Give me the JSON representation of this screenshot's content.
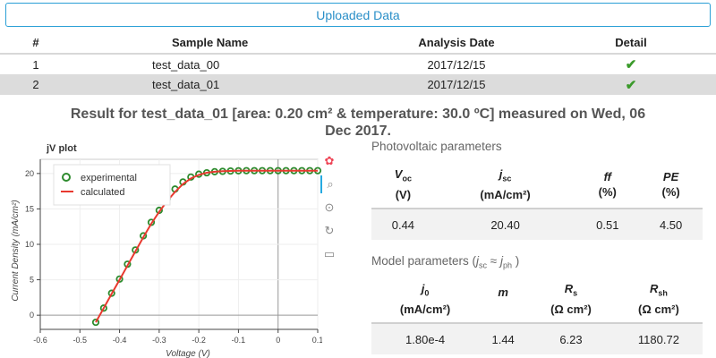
{
  "uploaded_button": "Uploaded Data",
  "table": {
    "headers": [
      "#",
      "Sample Name",
      "Analysis Date",
      "Detail"
    ],
    "rows": [
      {
        "num": "1",
        "name": "test_data_00",
        "date": "2017/12/15"
      },
      {
        "num": "2",
        "name": "test_data_01",
        "date": "2017/12/15"
      }
    ]
  },
  "result_title_line1": "Result for test_data_01 [area: 0.20 cm² & temperature: 30.0 ºC] measured on Wed, 06",
  "result_title_line2": "Dec 2017.",
  "plot": {
    "title": "jV plot",
    "legend_experimental": "experimental",
    "legend_calculated": "calculated",
    "xlabel": "Voltage (V)",
    "ylabel": "Current Density (mA/cm²)",
    "x_ticks": [
      "-0.6",
      "-0.5",
      "-0.4",
      "-0.3",
      "-0.2",
      "-0.1",
      "0",
      "0.1"
    ],
    "y_ticks": [
      "0",
      "5",
      "10",
      "15",
      "20"
    ]
  },
  "chart_data": {
    "type": "scatter",
    "title": "jV plot",
    "xlabel": "Voltage (V)",
    "ylabel": "Current Density (mA/cm²)",
    "xlim": [
      -0.6,
      0.1
    ],
    "ylim": [
      -2,
      22
    ],
    "grid": true,
    "legend_position": "top-left",
    "series": [
      {
        "name": "experimental",
        "style": "circle",
        "color": "#2e8b2e",
        "x": [
          -0.46,
          -0.44,
          -0.42,
          -0.4,
          -0.38,
          -0.36,
          -0.34,
          -0.32,
          -0.3,
          -0.28,
          -0.26,
          -0.24,
          -0.22,
          -0.2,
          -0.18,
          -0.16,
          -0.14,
          -0.12,
          -0.1,
          -0.08,
          -0.06,
          -0.04,
          -0.02,
          0.0,
          0.02,
          0.04,
          0.06,
          0.08,
          0.1
        ],
        "y": [
          -1.0,
          1.0,
          3.1,
          5.1,
          7.2,
          9.2,
          11.2,
          13.1,
          14.8,
          16.4,
          17.8,
          18.8,
          19.5,
          19.9,
          20.1,
          20.25,
          20.3,
          20.35,
          20.38,
          20.4,
          20.4,
          20.4,
          20.4,
          20.4,
          20.4,
          20.4,
          20.4,
          20.4,
          20.4
        ]
      },
      {
        "name": "calculated",
        "style": "line",
        "color": "#e8392f",
        "x": [
          -0.46,
          -0.44,
          -0.42,
          -0.4,
          -0.38,
          -0.36,
          -0.34,
          -0.32,
          -0.3,
          -0.28,
          -0.26,
          -0.24,
          -0.22,
          -0.2,
          -0.18,
          -0.16,
          -0.14,
          -0.12,
          -0.1,
          -0.08,
          -0.06,
          -0.04,
          -0.02,
          0.0,
          0.02,
          0.04,
          0.06,
          0.08,
          0.1
        ],
        "y": [
          -1.0,
          1.0,
          3.0,
          5.0,
          7.0,
          9.0,
          11.0,
          12.9,
          14.6,
          16.1,
          17.4,
          18.5,
          19.3,
          19.8,
          20.1,
          20.25,
          20.32,
          20.36,
          20.38,
          20.4,
          20.4,
          20.4,
          20.4,
          20.4,
          20.4,
          20.4,
          20.4,
          20.4,
          20.4
        ]
      }
    ]
  },
  "photovoltaic": {
    "title": "Photovoltaic parameters",
    "headers": [
      {
        "sym": "V",
        "sub": "oc",
        "unit": "(V)"
      },
      {
        "sym": "j",
        "sub": "sc",
        "unit": "(mA/cm²)"
      },
      {
        "sym": "ff",
        "sub": "",
        "unit": "(%)"
      },
      {
        "sym": "PE",
        "sub": "",
        "unit": "(%)"
      }
    ],
    "values": [
      "0.44",
      "20.40",
      "0.51",
      "4.50"
    ]
  },
  "model": {
    "title_prefix": "Model parameters (",
    "title_j1": "j",
    "title_sub1": "sc",
    "title_approx": " ≈ ",
    "title_j2": "j",
    "title_sub2": "ph",
    "title_suffix": " )",
    "headers": [
      {
        "sym": "j",
        "sub": "0",
        "unit": "(mA/cm²)"
      },
      {
        "sym": "m",
        "sub": "",
        "unit": ""
      },
      {
        "sym": "R",
        "sub": "s",
        "unit": "(Ω cm²)"
      },
      {
        "sym": "R",
        "sub": "sh",
        "unit": "(Ω cm²)"
      }
    ],
    "values": [
      "1.80e-4",
      "1.44",
      "6.23",
      "1180.72"
    ]
  },
  "toolbar_icons": [
    "bokeh-logo-icon",
    "box-zoom-icon",
    "wheel-zoom-icon",
    "reset-icon",
    "save-icon"
  ]
}
